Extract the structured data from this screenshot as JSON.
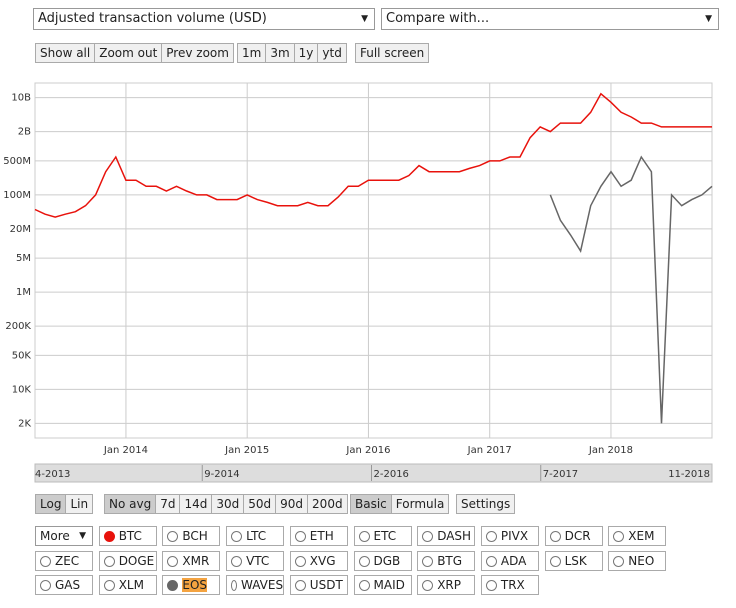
{
  "controls": {
    "metric_select": "Adjusted transaction volume (USD)",
    "compare_select": "Compare with...",
    "zoom_buttons": [
      "Show all",
      "Zoom out",
      "Prev zoom"
    ],
    "range_buttons": [
      "1m",
      "3m",
      "1y",
      "ytd"
    ],
    "fullscreen_button": "Full screen",
    "navigator_labels": [
      "4-2013",
      "9-2014",
      "2-2016",
      "7-2017",
      "11-2018"
    ],
    "scale_buttons": [
      "Log",
      "Lin"
    ],
    "avg_buttons": [
      "No avg",
      "7d",
      "14d",
      "30d",
      "50d",
      "90d",
      "200d"
    ],
    "mode_buttons": [
      "Basic",
      "Formula"
    ],
    "settings_button": "Settings",
    "more_select": "More",
    "coins": [
      "BTC",
      "BCH",
      "LTC",
      "ETH",
      "ETC",
      "DASH",
      "PIVX",
      "DCR",
      "XEM",
      "ZEC",
      "DOGE",
      "XMR",
      "VTC",
      "XVG",
      "DGB",
      "BTG",
      "ADA",
      "LSK",
      "NEO",
      "GAS",
      "XLM",
      "EOS",
      "WAVES",
      "USDT",
      "MAID",
      "XRP",
      "TRX"
    ]
  },
  "chart_data": {
    "type": "line",
    "log_y": true,
    "grid": true,
    "x": [
      "2013-04",
      "2013-05",
      "2013-06",
      "2013-07",
      "2013-08",
      "2013-09",
      "2013-10",
      "2013-11",
      "2013-12",
      "2014-01",
      "2014-02",
      "2014-03",
      "2014-04",
      "2014-05",
      "2014-06",
      "2014-07",
      "2014-08",
      "2014-09",
      "2014-10",
      "2014-11",
      "2014-12",
      "2015-01",
      "2015-02",
      "2015-03",
      "2015-04",
      "2015-05",
      "2015-06",
      "2015-07",
      "2015-08",
      "2015-09",
      "2015-10",
      "2015-11",
      "2015-12",
      "2016-01",
      "2016-02",
      "2016-03",
      "2016-04",
      "2016-05",
      "2016-06",
      "2016-07",
      "2016-08",
      "2016-09",
      "2016-10",
      "2016-11",
      "2016-12",
      "2017-01",
      "2017-02",
      "2017-03",
      "2017-04",
      "2017-05",
      "2017-06",
      "2017-07",
      "2017-08",
      "2017-09",
      "2017-10",
      "2017-11",
      "2017-12",
      "2018-01",
      "2018-02",
      "2018-03",
      "2018-04",
      "2018-05",
      "2018-06",
      "2018-07",
      "2018-08",
      "2018-09",
      "2018-10",
      "2018-11"
    ],
    "xlim": [
      "2013-04",
      "2018-11"
    ],
    "xticks": [
      {
        "value": "2014-01",
        "label": "Jan 2014"
      },
      {
        "value": "2015-01",
        "label": "Jan 2015"
      },
      {
        "value": "2016-01",
        "label": "Jan 2016"
      },
      {
        "value": "2017-01",
        "label": "Jan 2017"
      },
      {
        "value": "2018-01",
        "label": "Jan 2018"
      }
    ],
    "ylim": [
      1000,
      20000000000
    ],
    "yticks": [
      {
        "value": 2000,
        "label": "2K"
      },
      {
        "value": 10000,
        "label": "10K"
      },
      {
        "value": 50000,
        "label": "50K"
      },
      {
        "value": 200000,
        "label": "200K"
      },
      {
        "value": 1000000,
        "label": "1M"
      },
      {
        "value": 5000000,
        "label": "5M"
      },
      {
        "value": 20000000,
        "label": "20M"
      },
      {
        "value": 100000000,
        "label": "100M"
      },
      {
        "value": 500000000,
        "label": "500M"
      },
      {
        "value": 2000000000,
        "label": "2B"
      },
      {
        "value": 10000000000,
        "label": "10B"
      }
    ],
    "series": [
      {
        "name": "BTC",
        "color": "#e8120c",
        "values": [
          50000000,
          40000000,
          35000000,
          40000000,
          45000000,
          60000000,
          100000000,
          300000000,
          600000000,
          200000000,
          200000000,
          150000000,
          150000000,
          120000000,
          150000000,
          120000000,
          100000000,
          100000000,
          80000000,
          80000000,
          80000000,
          100000000,
          80000000,
          70000000,
          60000000,
          60000000,
          60000000,
          70000000,
          60000000,
          60000000,
          90000000,
          150000000,
          150000000,
          200000000,
          200000000,
          200000000,
          200000000,
          250000000,
          400000000,
          300000000,
          300000000,
          300000000,
          300000000,
          350000000,
          400000000,
          500000000,
          500000000,
          600000000,
          600000000,
          1500000000,
          2500000000,
          2000000000,
          3000000000,
          3000000000,
          3000000000,
          5000000000,
          12000000000,
          8000000000,
          5000000000,
          4000000000,
          3000000000,
          3000000000,
          2500000000,
          2500000000,
          2500000000,
          2500000000,
          2500000000,
          2500000000
        ]
      },
      {
        "name": "EOS",
        "color": "#666666",
        "values": [
          null,
          null,
          null,
          null,
          null,
          null,
          null,
          null,
          null,
          null,
          null,
          null,
          null,
          null,
          null,
          null,
          null,
          null,
          null,
          null,
          null,
          null,
          null,
          null,
          null,
          null,
          null,
          null,
          null,
          null,
          null,
          null,
          null,
          null,
          null,
          null,
          null,
          null,
          null,
          null,
          null,
          null,
          null,
          null,
          null,
          null,
          null,
          null,
          null,
          null,
          null,
          100000000,
          30000000,
          15000000,
          7000000,
          60000000,
          150000000,
          300000000,
          150000000,
          200000000,
          600000000,
          300000000,
          2000,
          100000000,
          60000000,
          80000000,
          100000000,
          150000000
        ]
      }
    ]
  }
}
